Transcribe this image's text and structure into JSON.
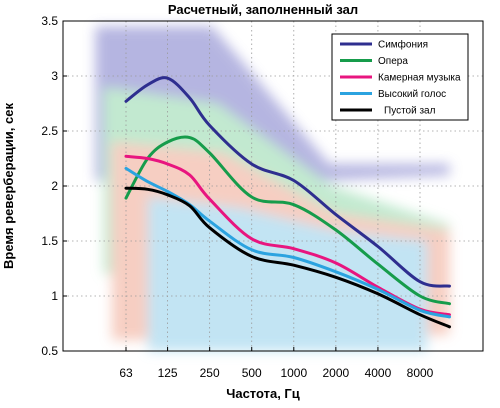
{
  "chart_data": {
    "type": "line",
    "title": "Расчетный,  заполненный зал",
    "xlabel": "Частота, Гц",
    "ylabel": "Время реверберации, сек",
    "x_scale": "log2",
    "x_ticks": [
      63,
      125,
      250,
      500,
      1000,
      2000,
      4000,
      8000
    ],
    "x_tick_labels": [
      "63",
      "125",
      "250",
      "500",
      "1000",
      "2000",
      "4000",
      "8000"
    ],
    "ylim": [
      0.5,
      3.5
    ],
    "y_ticks": [
      0.5,
      1,
      1.5,
      2,
      2.5,
      3,
      3.5
    ],
    "y_tick_labels": [
      "0.5",
      "1",
      "1.5",
      "2",
      "2.5",
      "3",
      "3.5"
    ],
    "grid": true,
    "legend_position": "top-right",
    "series": [
      {
        "name": "Симфония",
        "color": "#2e2e8f",
        "x": [
          63,
          90,
          125,
          180,
          250,
          500,
          1000,
          2000,
          4000,
          8000,
          13000
        ],
        "y": [
          2.77,
          2.92,
          2.98,
          2.8,
          2.55,
          2.2,
          2.05,
          1.74,
          1.45,
          1.13,
          1.09
        ]
      },
      {
        "name": "Опера",
        "color": "#169c4b",
        "x": [
          63,
          90,
          125,
          180,
          250,
          500,
          1000,
          2000,
          4000,
          8000,
          13000
        ],
        "y": [
          1.89,
          2.25,
          2.4,
          2.44,
          2.3,
          1.9,
          1.83,
          1.6,
          1.29,
          1.0,
          0.93
        ]
      },
      {
        "name": "Камерная музыка",
        "color": "#e8157f",
        "x": [
          63,
          90,
          125,
          180,
          250,
          500,
          1000,
          2000,
          4000,
          8000,
          13000
        ],
        "y": [
          2.27,
          2.25,
          2.2,
          2.1,
          1.88,
          1.52,
          1.43,
          1.3,
          1.08,
          0.88,
          0.83
        ]
      },
      {
        "name": "Высокий голос",
        "color": "#2ba3e0",
        "x": [
          63,
          90,
          125,
          180,
          250,
          500,
          1000,
          2000,
          4000,
          8000,
          13000
        ],
        "y": [
          2.16,
          2.04,
          1.95,
          1.83,
          1.68,
          1.42,
          1.35,
          1.22,
          1.06,
          0.87,
          0.81
        ]
      },
      {
        "name": "Пустой зал",
        "color": "#000000",
        "x": [
          63,
          90,
          125,
          180,
          250,
          500,
          1000,
          2000,
          4000,
          8000,
          13000
        ],
        "y": [
          1.98,
          1.97,
          1.92,
          1.82,
          1.62,
          1.36,
          1.28,
          1.17,
          1.02,
          0.83,
          0.72
        ]
      }
    ],
    "background_bands": [
      {
        "color": "#a9a9dc",
        "x": [
          42,
          13000
        ],
        "y_top": [
          3.45,
          3.45,
          2.2,
          2.2
        ],
        "y_bottom": [
          2.05,
          2.0,
          2.05,
          2.1
        ]
      },
      {
        "color": "#b8e6c8",
        "x": [
          48,
          13000
        ],
        "y_top": [
          2.9,
          2.75,
          2.0,
          1.65
        ],
        "y_bottom": [
          1.2,
          1.2,
          1.1,
          0.9
        ]
      },
      {
        "color": "#f5c6b8",
        "x": [
          55,
          13000
        ],
        "y_top": [
          2.4,
          2.3,
          1.75,
          1.6
        ],
        "y_bottom": [
          0.6,
          0.6,
          0.6,
          0.65
        ]
      },
      {
        "color": "#b8e0f2",
        "x": [
          100,
          9000
        ],
        "y_top": [
          1.9,
          1.8,
          1.6,
          1.5
        ],
        "y_bottom": [
          0.5,
          0.5,
          0.5,
          0.5
        ]
      }
    ]
  }
}
